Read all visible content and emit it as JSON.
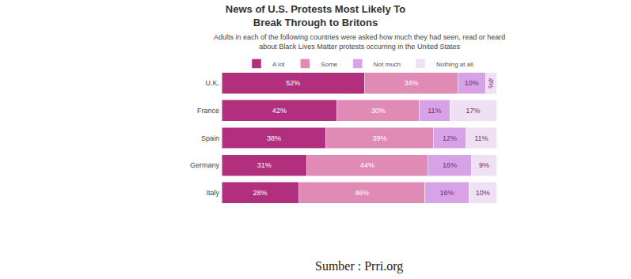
{
  "chart_data": {
    "type": "bar",
    "orientation": "horizontal",
    "stacked": true,
    "data_labels": true,
    "tick_labels": "y",
    "grid": false,
    "legend": "top",
    "title": "News of U.S. Protests Most Likely To Break Through to Britons",
    "subtitle": "Adults in each of the following countries were asked how much they had seen, read or heard about Black Lives Matter protests occurring in the United States",
    "source": "Sumber : Prri.org",
    "categories": [
      "U.K.",
      "France",
      "Spain",
      "Germany",
      "Italy"
    ],
    "xlim": [
      0,
      100
    ],
    "series": [
      {
        "name": "A lot",
        "color": "#b0307e",
        "values": [
          52,
          42,
          38,
          31,
          28
        ],
        "value_labels": [
          "52%",
          "42%",
          "38%",
          "31%",
          "28%"
        ]
      },
      {
        "name": "Some",
        "color": "#e08bb6",
        "values": [
          34,
          30,
          39,
          44,
          46
        ],
        "value_labels": [
          "34%",
          "30%",
          "39%",
          "44%",
          "46%"
        ]
      },
      {
        "name": "Not much",
        "color": "#d7a3e6",
        "values": [
          10,
          11,
          12,
          16,
          16
        ],
        "value_labels": [
          "10%",
          "11%",
          "12%",
          "16%",
          "16%"
        ]
      },
      {
        "name": "Nothing at all",
        "color": "#efe0f4",
        "values": [
          4,
          17,
          11,
          9,
          10
        ],
        "value_labels": [
          "4%",
          "17%",
          "11%",
          "9%",
          "10%"
        ]
      }
    ]
  }
}
